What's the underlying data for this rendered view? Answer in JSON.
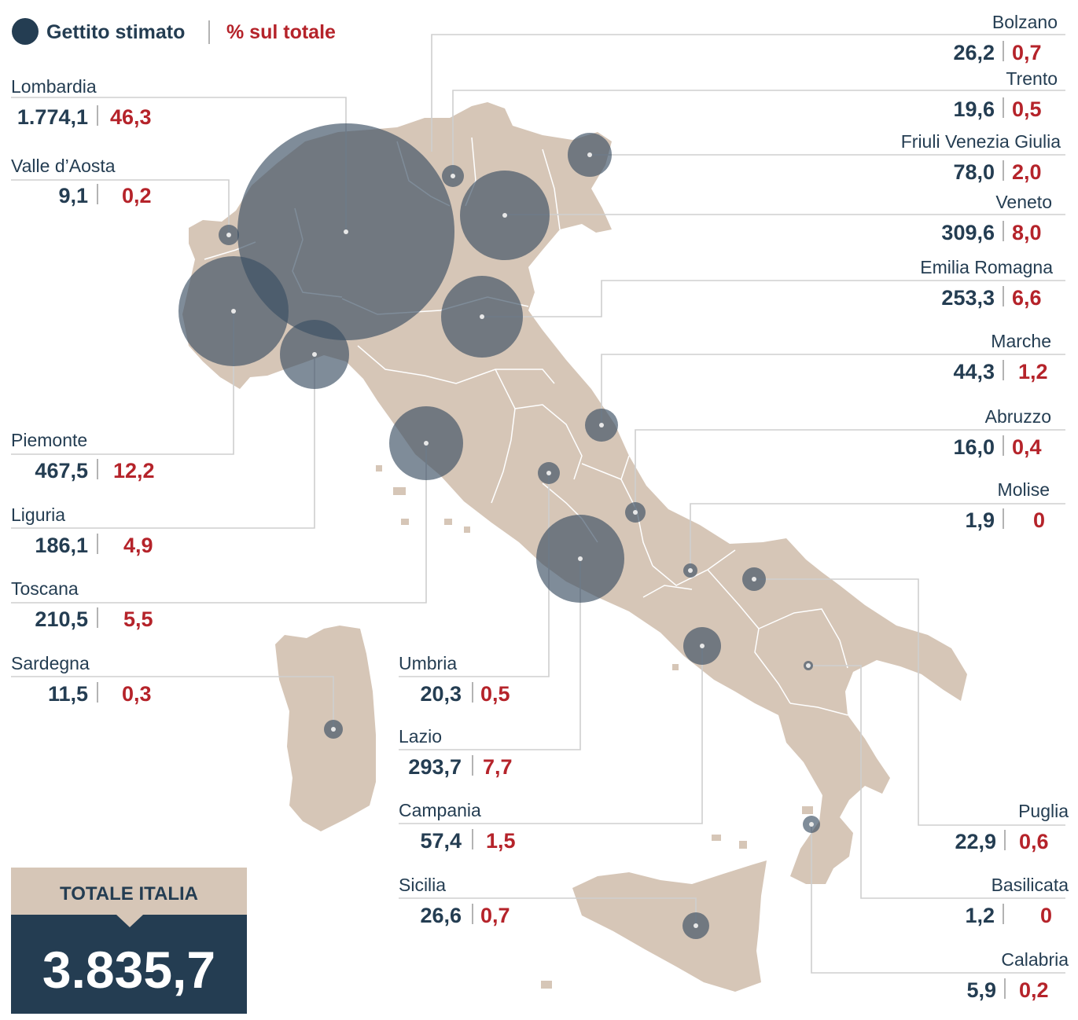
{
  "legend": {
    "gettito_label": "Gettito stimato",
    "percent_label": "% sul totale"
  },
  "regions": [
    {
      "name": "Bolzano",
      "value": "26,2",
      "pct": "0,7"
    },
    {
      "name": "Trento",
      "value": "19,6",
      "pct": "0,5"
    },
    {
      "name": "Friuli Venezia Giulia",
      "value": "78,0",
      "pct": "2,0"
    },
    {
      "name": "Veneto",
      "value": "309,6",
      "pct": "8,0"
    },
    {
      "name": "Emilia Romagna",
      "value": "253,3",
      "pct": "6,6"
    },
    {
      "name": "Marche",
      "value": "44,3",
      "pct": "1,2"
    },
    {
      "name": "Abruzzo",
      "value": "16,0",
      "pct": "0,4"
    },
    {
      "name": "Molise",
      "value": "1,9",
      "pct": "0"
    },
    {
      "name": "Puglia",
      "value": "22,9",
      "pct": "0,6"
    },
    {
      "name": "Basilicata",
      "value": "1,2",
      "pct": "0"
    },
    {
      "name": "Calabria",
      "value": "5,9",
      "pct": "0,2"
    },
    {
      "name": "Lombardia",
      "value": "1.774,1",
      "pct": "46,3"
    },
    {
      "name": "Valle d’Aosta",
      "value": "9,1",
      "pct": "0,2"
    },
    {
      "name": "Piemonte",
      "value": "467,5",
      "pct": "12,2"
    },
    {
      "name": "Liguria",
      "value": "186,1",
      "pct": "4,9"
    },
    {
      "name": "Toscana",
      "value": "210,5",
      "pct": "5,5"
    },
    {
      "name": "Sardegna",
      "value": "11,5",
      "pct": "0,3"
    },
    {
      "name": "Umbria",
      "value": "20,3",
      "pct": "0,5"
    },
    {
      "name": "Lazio",
      "value": "293,7",
      "pct": "7,7"
    },
    {
      "name": "Campania",
      "value": "57,4",
      "pct": "1,5"
    },
    {
      "name": "Sicilia",
      "value": "26,6",
      "pct": "0,7"
    }
  ],
  "total": {
    "title": "TOTALE ITALIA",
    "value": "3.835,7"
  },
  "colors": {
    "navy": "#243d52",
    "red": "#b5232a",
    "land": "#d6c6b7",
    "bubble": "#3a4f62"
  }
}
